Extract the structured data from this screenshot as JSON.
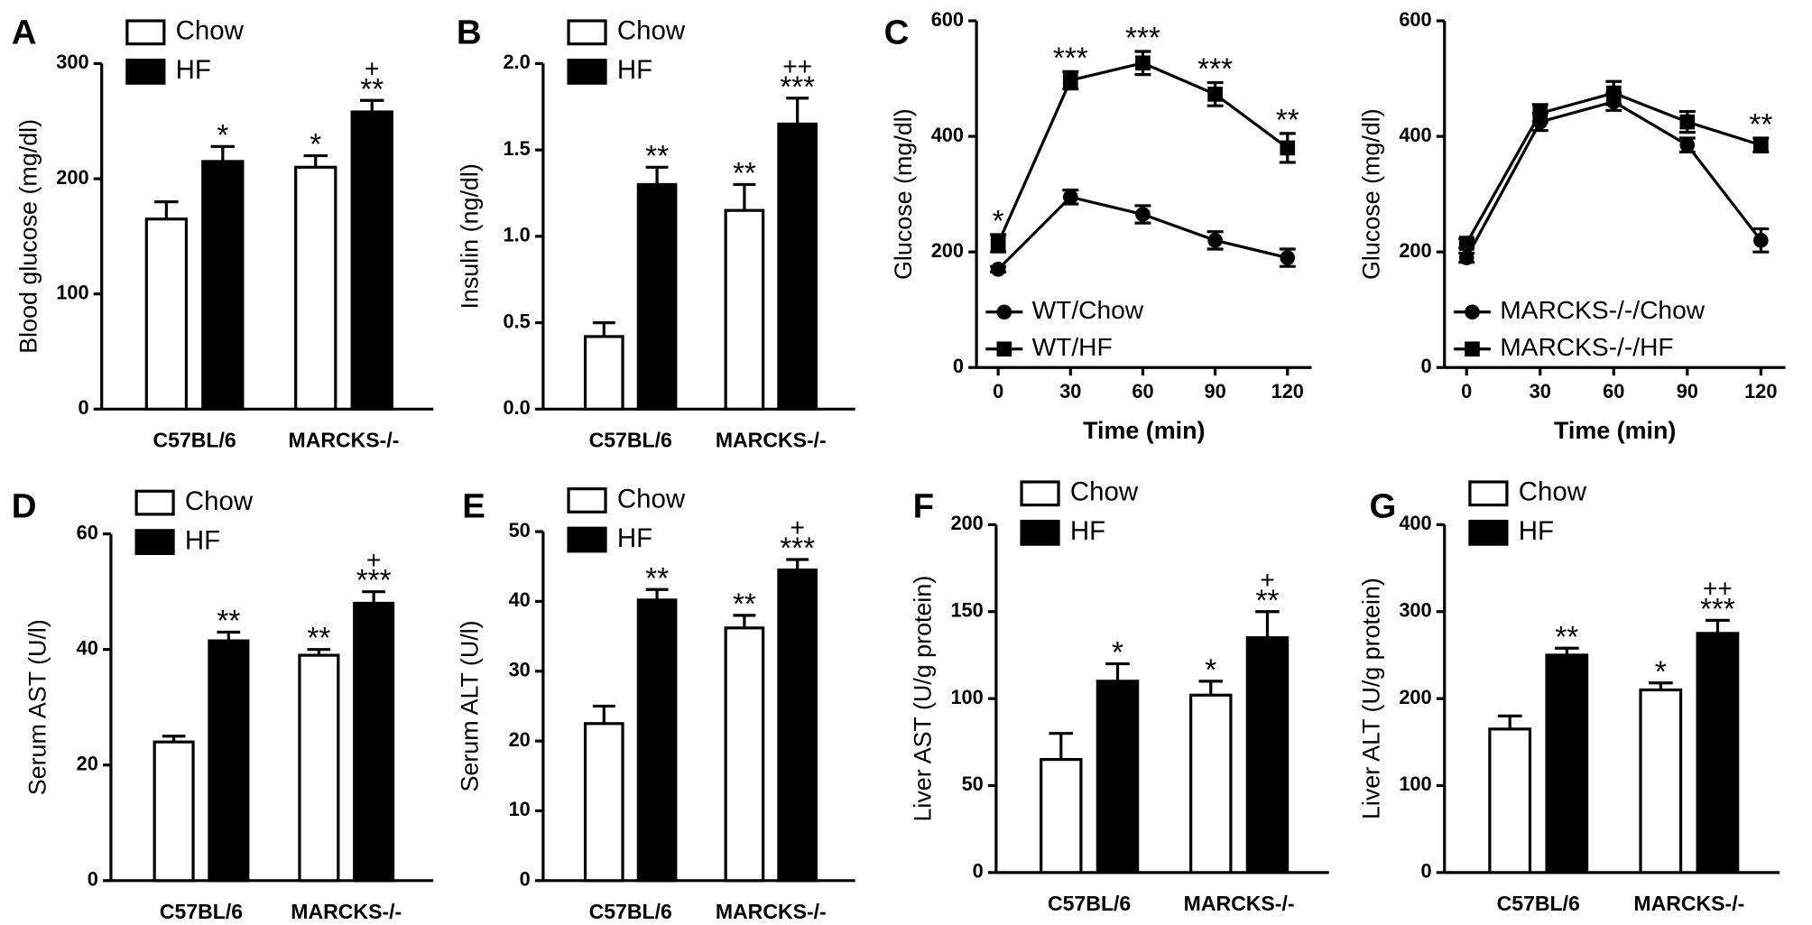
{
  "chart_data": [
    {
      "type": "bar",
      "panel": "A",
      "ylabel": "Blood glucose (mg/dl)",
      "categories": [
        "C57BL/6",
        "MARCKS-/-"
      ],
      "ylim": [
        0,
        300
      ],
      "yticks": [
        0,
        100,
        200,
        300
      ],
      "legend": "upper left",
      "series": [
        {
          "name": "Chow",
          "color": "#ffffff",
          "values": [
            165,
            210
          ],
          "errors": [
            15,
            10
          ],
          "significance": [
            null,
            "*"
          ]
        },
        {
          "name": "HF",
          "color": "#000000",
          "values": [
            215,
            258
          ],
          "errors": [
            13,
            10
          ],
          "significance": [
            "*",
            "**"
          ],
          "significance2": [
            null,
            "+"
          ]
        }
      ]
    },
    {
      "type": "bar",
      "panel": "B",
      "ylabel": "Insulin (ng/dl)",
      "categories": [
        "C57BL/6",
        "MARCKS-/-"
      ],
      "ylim": [
        0,
        2
      ],
      "yticks": [
        {
          "value": 0,
          "label": "0.0"
        },
        0.5,
        {
          "value": 1,
          "label": "1.0"
        },
        1.5,
        {
          "value": 2,
          "label": "2.0"
        }
      ],
      "legend": "upper left",
      "series": [
        {
          "name": "Chow",
          "color": "#ffffff",
          "values": [
            0.42,
            1.15
          ],
          "errors": [
            0.08,
            0.15
          ],
          "significance": [
            null,
            "**"
          ]
        },
        {
          "name": "HF",
          "color": "#000000",
          "values": [
            1.3,
            1.65
          ],
          "errors": [
            0.1,
            0.15
          ],
          "significance": [
            "**",
            "***"
          ],
          "significance2": [
            null,
            "++"
          ]
        }
      ]
    },
    {
      "type": "line",
      "panel": "C",
      "ylabel": "Glucose (mg/dl)",
      "xlabel": "Time (min)",
      "x": [
        0,
        30,
        60,
        90,
        120
      ],
      "xlim": [
        -9,
        130
      ],
      "xticks": [
        0,
        30,
        60,
        90,
        120
      ],
      "ylim": [
        0,
        600
      ],
      "yticks": [
        0,
        200,
        400,
        600
      ],
      "legend": "lower left",
      "series": [
        {
          "name": "WT/Chow",
          "color": "#000000",
          "marker": "circle",
          "values": [
            170,
            295,
            265,
            220,
            190
          ],
          "errors": [
            5,
            12,
            15,
            15,
            15
          ]
        },
        {
          "name": "WT/HF",
          "color": "#000000",
          "marker": "square",
          "values": [
            215,
            497,
            527,
            473,
            380
          ],
          "errors": [
            15,
            15,
            20,
            20,
            25
          ],
          "significance": [
            "*",
            "***",
            "***",
            "***",
            "**"
          ]
        }
      ]
    },
    {
      "type": "line",
      "ylabel": "Glucose (mg/dl)",
      "xlabel": "Time (min)",
      "x": [
        0,
        30,
        60,
        90,
        120
      ],
      "xlim": [
        -9,
        130
      ],
      "xticks": [
        0,
        30,
        60,
        90,
        120
      ],
      "ylim": [
        0,
        600
      ],
      "yticks": [
        0,
        200,
        400,
        600
      ],
      "legend": "lower left",
      "series": [
        {
          "name": "MARCKS-/-/Chow",
          "color": "#000000",
          "marker": "circle",
          "values": [
            190,
            425,
            460,
            385,
            220
          ],
          "errors": [
            8,
            15,
            15,
            12,
            20
          ]
        },
        {
          "name": "MARCKS-/-/HF",
          "color": "#000000",
          "marker": "square",
          "values": [
            215,
            440,
            475,
            425,
            385
          ],
          "errors": [
            8,
            15,
            20,
            18,
            12
          ],
          "significance": [
            null,
            null,
            null,
            null,
            "**"
          ]
        }
      ]
    },
    {
      "type": "bar",
      "panel": "D",
      "ylabel": "Serum AST (U/l)",
      "categories": [
        "C57BL/6",
        "MARCKS-/-"
      ],
      "ylim": [
        0,
        60
      ],
      "yticks": [
        0,
        20,
        40,
        60
      ],
      "legend": "upper left",
      "series": [
        {
          "name": "Chow",
          "color": "#ffffff",
          "values": [
            24,
            39
          ],
          "errors": [
            1,
            1
          ],
          "significance": [
            null,
            "**"
          ]
        },
        {
          "name": "HF",
          "color": "#000000",
          "values": [
            41.5,
            48
          ],
          "errors": [
            1.5,
            2
          ],
          "significance": [
            "**",
            "***"
          ],
          "significance2": [
            null,
            "+"
          ]
        }
      ]
    },
    {
      "type": "bar",
      "panel": "E",
      "ylabel": "Serum ALT (U/l)",
      "categories": [
        "C57BL/6",
        "MARCKS-/-"
      ],
      "ylim": [
        0,
        50
      ],
      "yticks": [
        0,
        10,
        20,
        30,
        40,
        50
      ],
      "legend": "upper left",
      "series": [
        {
          "name": "Chow",
          "color": "#ffffff",
          "values": [
            22.5,
            36.2
          ],
          "errors": [
            2.5,
            1.8
          ],
          "significance": [
            null,
            "**"
          ]
        },
        {
          "name": "HF",
          "color": "#000000",
          "values": [
            40.2,
            44.5
          ],
          "errors": [
            1.5,
            1.5
          ],
          "significance": [
            "**",
            "***"
          ],
          "significance2": [
            null,
            "+"
          ]
        }
      ]
    },
    {
      "type": "bar",
      "panel": "F",
      "ylabel": "Liver AST (U/g protein)",
      "categories": [
        "C57BL/6",
        "MARCKS-/-"
      ],
      "ylim": [
        0,
        200
      ],
      "yticks": [
        0,
        50,
        100,
        150,
        200
      ],
      "legend": "upper left",
      "series": [
        {
          "name": "Chow",
          "color": "#ffffff",
          "values": [
            65,
            102
          ],
          "errors": [
            15,
            8
          ],
          "significance": [
            null,
            "*"
          ]
        },
        {
          "name": "HF",
          "color": "#000000",
          "values": [
            110,
            135
          ],
          "errors": [
            10,
            15
          ],
          "significance": [
            "*",
            "**"
          ],
          "significance2": [
            null,
            "+"
          ]
        }
      ]
    },
    {
      "type": "bar",
      "panel": "G",
      "ylabel": "Liver ALT (U/g protein)",
      "categories": [
        "C57BL/6",
        "MARCKS-/-"
      ],
      "ylim": [
        0,
        400
      ],
      "yticks": [
        0,
        100,
        200,
        300,
        400
      ],
      "legend": "upper left",
      "series": [
        {
          "name": "Chow",
          "color": "#ffffff",
          "values": [
            165,
            210
          ],
          "errors": [
            15,
            8
          ],
          "significance": [
            null,
            "*"
          ]
        },
        {
          "name": "HF",
          "color": "#000000",
          "values": [
            250,
            275
          ],
          "errors": [
            8,
            15
          ],
          "significance": [
            "**",
            "***"
          ],
          "significance2": [
            null,
            "++"
          ]
        }
      ]
    }
  ]
}
